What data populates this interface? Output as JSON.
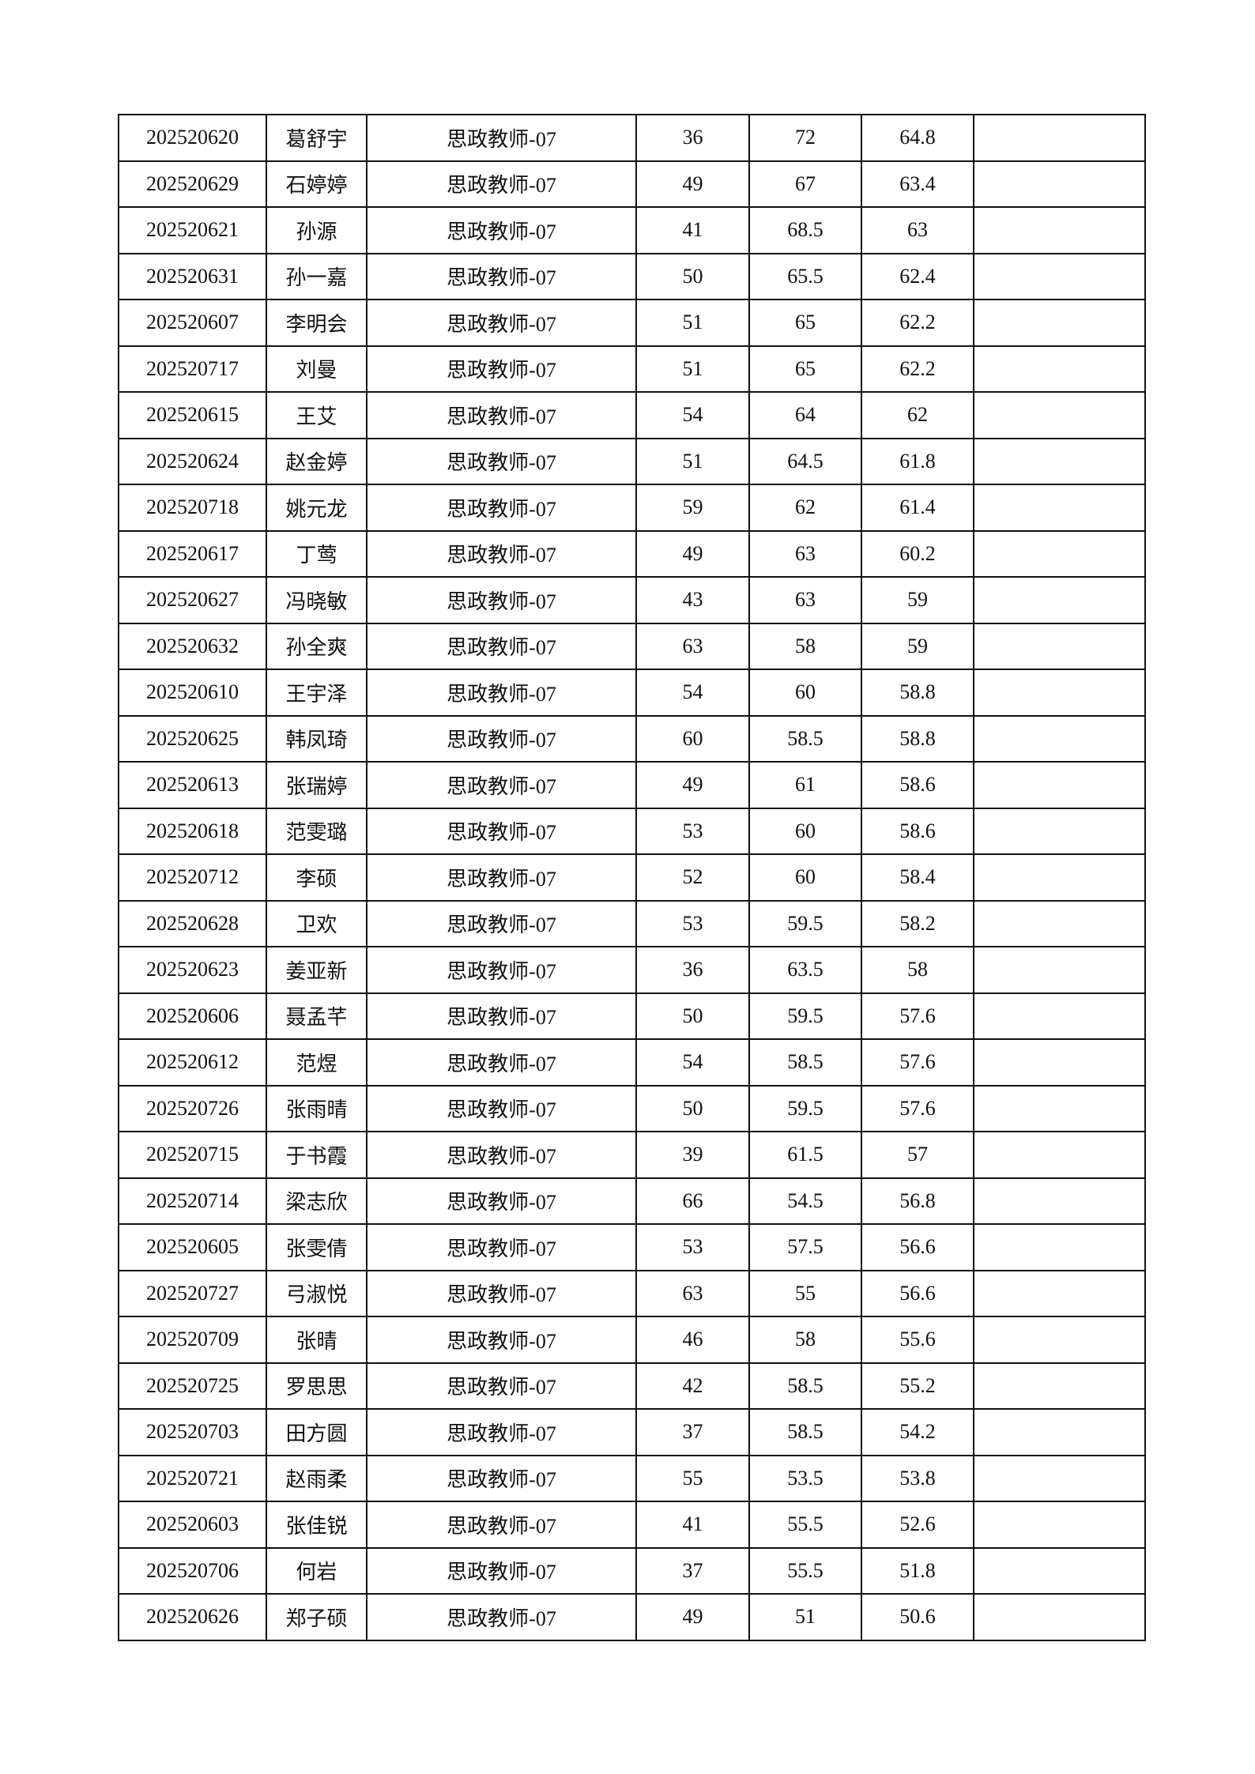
{
  "rows": [
    [
      "202520620",
      "葛舒宇",
      "思政教师-07",
      "36",
      "72",
      "64.8",
      ""
    ],
    [
      "202520629",
      "石婷婷",
      "思政教师-07",
      "49",
      "67",
      "63.4",
      ""
    ],
    [
      "202520621",
      "孙源",
      "思政教师-07",
      "41",
      "68.5",
      "63",
      ""
    ],
    [
      "202520631",
      "孙一嘉",
      "思政教师-07",
      "50",
      "65.5",
      "62.4",
      ""
    ],
    [
      "202520607",
      "李明会",
      "思政教师-07",
      "51",
      "65",
      "62.2",
      ""
    ],
    [
      "202520717",
      "刘曼",
      "思政教师-07",
      "51",
      "65",
      "62.2",
      ""
    ],
    [
      "202520615",
      "王艾",
      "思政教师-07",
      "54",
      "64",
      "62",
      ""
    ],
    [
      "202520624",
      "赵金婷",
      "思政教师-07",
      "51",
      "64.5",
      "61.8",
      ""
    ],
    [
      "202520718",
      "姚元龙",
      "思政教师-07",
      "59",
      "62",
      "61.4",
      ""
    ],
    [
      "202520617",
      "丁莺",
      "思政教师-07",
      "49",
      "63",
      "60.2",
      ""
    ],
    [
      "202520627",
      "冯晓敏",
      "思政教师-07",
      "43",
      "63",
      "59",
      ""
    ],
    [
      "202520632",
      "孙全爽",
      "思政教师-07",
      "63",
      "58",
      "59",
      ""
    ],
    [
      "202520610",
      "王宇泽",
      "思政教师-07",
      "54",
      "60",
      "58.8",
      ""
    ],
    [
      "202520625",
      "韩凤琦",
      "思政教师-07",
      "60",
      "58.5",
      "58.8",
      ""
    ],
    [
      "202520613",
      "张瑞婷",
      "思政教师-07",
      "49",
      "61",
      "58.6",
      ""
    ],
    [
      "202520618",
      "范雯璐",
      "思政教师-07",
      "53",
      "60",
      "58.6",
      ""
    ],
    [
      "202520712",
      "李硕",
      "思政教师-07",
      "52",
      "60",
      "58.4",
      ""
    ],
    [
      "202520628",
      "卫欢",
      "思政教师-07",
      "53",
      "59.5",
      "58.2",
      ""
    ],
    [
      "202520623",
      "姜亚新",
      "思政教师-07",
      "36",
      "63.5",
      "58",
      ""
    ],
    [
      "202520606",
      "聂孟芊",
      "思政教师-07",
      "50",
      "59.5",
      "57.6",
      ""
    ],
    [
      "202520612",
      "范煜",
      "思政教师-07",
      "54",
      "58.5",
      "57.6",
      ""
    ],
    [
      "202520726",
      "张雨晴",
      "思政教师-07",
      "50",
      "59.5",
      "57.6",
      ""
    ],
    [
      "202520715",
      "于书霞",
      "思政教师-07",
      "39",
      "61.5",
      "57",
      ""
    ],
    [
      "202520714",
      "梁志欣",
      "思政教师-07",
      "66",
      "54.5",
      "56.8",
      ""
    ],
    [
      "202520605",
      "张雯倩",
      "思政教师-07",
      "53",
      "57.5",
      "56.6",
      ""
    ],
    [
      "202520727",
      "弓淑悦",
      "思政教师-07",
      "63",
      "55",
      "56.6",
      ""
    ],
    [
      "202520709",
      "张晴",
      "思政教师-07",
      "46",
      "58",
      "55.6",
      ""
    ],
    [
      "202520725",
      "罗思思",
      "思政教师-07",
      "42",
      "58.5",
      "55.2",
      ""
    ],
    [
      "202520703",
      "田方圆",
      "思政教师-07",
      "37",
      "58.5",
      "54.2",
      ""
    ],
    [
      "202520721",
      "赵雨柔",
      "思政教师-07",
      "55",
      "53.5",
      "53.8",
      ""
    ],
    [
      "202520603",
      "张佳锐",
      "思政教师-07",
      "41",
      "55.5",
      "52.6",
      ""
    ],
    [
      "202520706",
      "何岩",
      "思政教师-07",
      "37",
      "55.5",
      "51.8",
      ""
    ],
    [
      "202520626",
      "郑子硕",
      "思政教师-07",
      "49",
      "51",
      "50.6",
      ""
    ]
  ]
}
